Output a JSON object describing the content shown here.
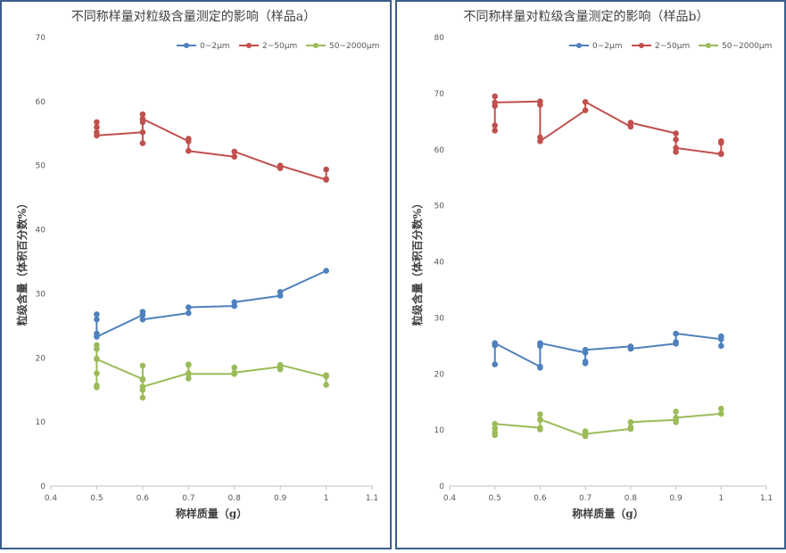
{
  "chart_data": [
    {
      "type": "line",
      "title": "不同称样量对粒级含量测定的影响（样品a）",
      "xlabel": "称样质量（g）",
      "ylabel": "粒级含量（体积百分数%）",
      "xlim": [
        0.4,
        1.1
      ],
      "ylim": [
        0,
        70
      ],
      "xticks": [
        0.4,
        0.5,
        0.6,
        0.7,
        0.8,
        0.9,
        1,
        1.1
      ],
      "yticks": [
        0,
        10,
        20,
        30,
        40,
        50,
        60,
        70
      ],
      "legend_position": "top-right",
      "series": [
        {
          "name": "0~2μm",
          "color": "#4f81bd",
          "points": [
            [
              0.5,
              23.8
            ],
            [
              0.5,
              26.8
            ],
            [
              0.5,
              26.0
            ],
            [
              0.5,
              23.3
            ],
            [
              0.6,
              26.7
            ],
            [
              0.6,
              27.2
            ],
            [
              0.6,
              26.0
            ],
            [
              0.7,
              27.0
            ],
            [
              0.7,
              27.9
            ],
            [
              0.8,
              28.1
            ],
            [
              0.8,
              28.7
            ],
            [
              0.9,
              29.7
            ],
            [
              0.9,
              30.3
            ],
            [
              1.0,
              33.6
            ]
          ]
        },
        {
          "name": "2~50μm",
          "color": "#c0504d",
          "points": [
            [
              0.5,
              56.0
            ],
            [
              0.5,
              56.8
            ],
            [
              0.5,
              55.2
            ],
            [
              0.5,
              54.7
            ],
            [
              0.6,
              55.2
            ],
            [
              0.6,
              53.5
            ],
            [
              0.6,
              56.8
            ],
            [
              0.6,
              58.0
            ],
            [
              0.6,
              57.3
            ],
            [
              0.7,
              53.8
            ],
            [
              0.7,
              54.2
            ],
            [
              0.7,
              52.3
            ],
            [
              0.8,
              51.4
            ],
            [
              0.8,
              52.2
            ],
            [
              0.9,
              49.6
            ],
            [
              0.9,
              50.0
            ],
            [
              1.0,
              47.8
            ],
            [
              1.0,
              49.4
            ],
            [
              1.0,
              47.9
            ]
          ]
        },
        {
          "name": "50~2000μm",
          "color": "#9bbb59",
          "points": [
            [
              0.5,
              15.7
            ],
            [
              0.5,
              15.4
            ],
            [
              0.5,
              17.6
            ],
            [
              0.5,
              19.9
            ],
            [
              0.5,
              21.4
            ],
            [
              0.5,
              22.0
            ],
            [
              0.5,
              19.8
            ],
            [
              0.6,
              16.7
            ],
            [
              0.6,
              18.8
            ],
            [
              0.6,
              16.6
            ],
            [
              0.6,
              15.0
            ],
            [
              0.6,
              13.8
            ],
            [
              0.6,
              15.5
            ],
            [
              0.7,
              17.6
            ],
            [
              0.7,
              16.8
            ],
            [
              0.7,
              19.0
            ],
            [
              0.7,
              18.9
            ],
            [
              0.7,
              17.5
            ],
            [
              0.8,
              17.5
            ],
            [
              0.8,
              18.5
            ],
            [
              0.8,
              17.7
            ],
            [
              0.9,
              18.6
            ],
            [
              0.9,
              18.2
            ],
            [
              0.9,
              18.9
            ],
            [
              1.0,
              17.1
            ],
            [
              1.0,
              15.8
            ],
            [
              1.0,
              17.3
            ]
          ]
        }
      ]
    },
    {
      "type": "line",
      "title": "不同称样量对粒级含量测定的影响（样品b）",
      "xlabel": "称样质量（g）",
      "ylabel": "粒级含量（体积百分数%）",
      "xlim": [
        0.4,
        1.1
      ],
      "ylim": [
        0,
        80
      ],
      "xticks": [
        0.4,
        0.5,
        0.6,
        0.7,
        0.8,
        0.9,
        1,
        1.1
      ],
      "yticks": [
        0,
        10,
        20,
        30,
        40,
        50,
        60,
        70,
        80
      ],
      "legend_position": "top-right",
      "series": [
        {
          "name": "0~2μm",
          "color": "#4f81bd",
          "points": [
            [
              0.5,
              21.7
            ],
            [
              0.5,
              25.1
            ],
            [
              0.5,
              25.5
            ],
            [
              0.6,
              21.3
            ],
            [
              0.6,
              21.1
            ],
            [
              0.6,
              25.0
            ],
            [
              0.6,
              25.5
            ],
            [
              0.7,
              23.8
            ],
            [
              0.7,
              22.2
            ],
            [
              0.7,
              21.9
            ],
            [
              0.7,
              24.3
            ],
            [
              0.8,
              24.9
            ],
            [
              0.8,
              24.5
            ],
            [
              0.9,
              25.4
            ],
            [
              0.9,
              25.7
            ],
            [
              0.9,
              27.2
            ],
            [
              1.0,
              26.2
            ],
            [
              1.0,
              25.0
            ],
            [
              1.0,
              26.7
            ]
          ]
        },
        {
          "name": "2~50μm",
          "color": "#c0504d",
          "points": [
            [
              0.5,
              63.4
            ],
            [
              0.5,
              64.3
            ],
            [
              0.5,
              67.8
            ],
            [
              0.5,
              69.5
            ],
            [
              0.5,
              68.4
            ],
            [
              0.6,
              68.6
            ],
            [
              0.6,
              68.0
            ],
            [
              0.6,
              62.2
            ],
            [
              0.6,
              61.5
            ],
            [
              0.7,
              67.0
            ],
            [
              0.7,
              68.5
            ],
            [
              0.8,
              64.1
            ],
            [
              0.8,
              64.8
            ],
            [
              0.9,
              62.9
            ],
            [
              0.9,
              61.8
            ],
            [
              0.9,
              59.6
            ],
            [
              0.9,
              60.3
            ],
            [
              1.0,
              59.2
            ],
            [
              1.0,
              61.2
            ],
            [
              1.0,
              61.5
            ],
            [
              1.0,
              59.3
            ]
          ]
        },
        {
          "name": "50~2000μm",
          "color": "#9bbb59",
          "points": [
            [
              0.5,
              9.1
            ],
            [
              0.5,
              9.6
            ],
            [
              0.5,
              10.3
            ],
            [
              0.5,
              11.1
            ],
            [
              0.6,
              10.4
            ],
            [
              0.6,
              10.1
            ],
            [
              0.6,
              11.8
            ],
            [
              0.6,
              12.8
            ],
            [
              0.6,
              11.9
            ],
            [
              0.7,
              8.9
            ],
            [
              0.7,
              9.8
            ],
            [
              0.7,
              9.3
            ],
            [
              0.8,
              10.2
            ],
            [
              0.8,
              10.5
            ],
            [
              0.8,
              11.4
            ],
            [
              0.9,
              11.8
            ],
            [
              0.9,
              11.4
            ],
            [
              0.9,
              13.3
            ],
            [
              0.9,
              12.2
            ],
            [
              1.0,
              12.9
            ],
            [
              1.0,
              13.8
            ]
          ]
        }
      ]
    }
  ]
}
